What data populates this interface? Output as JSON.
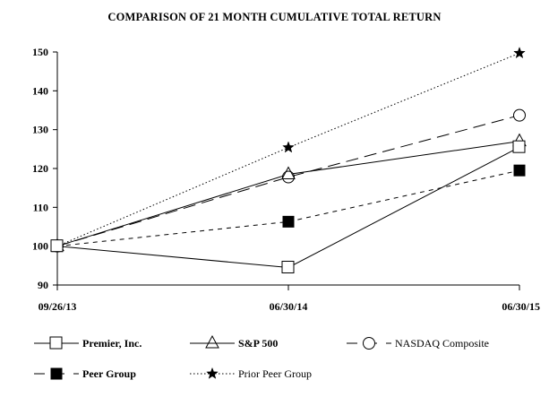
{
  "chart_data": {
    "type": "line",
    "title": "COMPARISON OF 21 MONTH CUMULATIVE TOTAL RETURN",
    "xlabel": "",
    "ylabel": "",
    "categories": [
      "09/26/13",
      "06/30/14",
      "06/30/15"
    ],
    "ylim": [
      90,
      150
    ],
    "yticks": [
      90,
      100,
      110,
      120,
      130,
      140,
      150
    ],
    "grid": false,
    "legend_position": "bottom",
    "series": [
      {
        "name": "Premier, Inc.",
        "values": [
          100,
          94.5,
          125.5
        ],
        "line_style": "solid",
        "marker": "open-square",
        "bold_label": true
      },
      {
        "name": "S&P 500",
        "values": [
          100,
          118.5,
          127
        ],
        "line_style": "solid",
        "marker": "open-triangle",
        "bold_label": true
      },
      {
        "name": "NASDAQ Composite",
        "values": [
          100,
          117.8,
          133.7
        ],
        "line_style": "long-dash",
        "marker": "open-circle",
        "bold_label": false
      },
      {
        "name": "Peer Group",
        "values": [
          100,
          106.3,
          119.5
        ],
        "line_style": "short-dash",
        "marker": "filled-square",
        "bold_label": true
      },
      {
        "name": "Prior Peer Group",
        "values": [
          100,
          125.4,
          149.7
        ],
        "line_style": "dotted",
        "marker": "star",
        "bold_label": false
      }
    ]
  }
}
